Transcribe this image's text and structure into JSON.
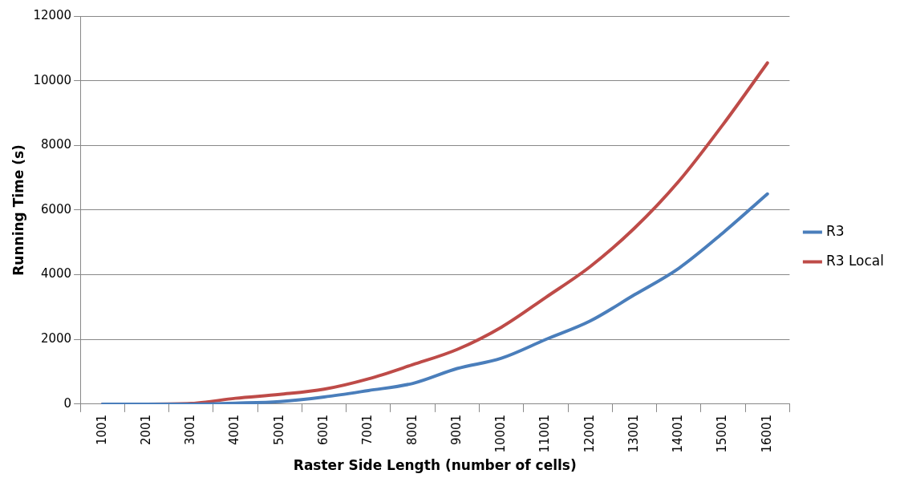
{
  "chart_data": {
    "type": "line",
    "xlabel": "Raster Side Length (number of cells)",
    "ylabel": "Running Time (s)",
    "categories": [
      "1001",
      "2001",
      "3001",
      "4001",
      "5001",
      "6001",
      "7001",
      "8001",
      "9001",
      "10001",
      "11001",
      "12001",
      "13001",
      "14001",
      "15001",
      "16001"
    ],
    "series": [
      {
        "name": "R3",
        "color": "#4a7ebb",
        "values": [
          0,
          0,
          0,
          30,
          80,
          220,
          420,
          640,
          1100,
          1420,
          2000,
          2570,
          3380,
          4200,
          5300,
          6500
        ]
      },
      {
        "name": "R3 Local",
        "color": "#be4b48",
        "values": [
          0,
          0,
          20,
          180,
          300,
          460,
          780,
          1220,
          1690,
          2380,
          3300,
          4250,
          5440,
          6890,
          8650,
          10550
        ]
      }
    ],
    "ylim": [
      0,
      12000
    ],
    "yticks": [
      0,
      2000,
      4000,
      6000,
      8000,
      10000,
      12000
    ],
    "grid": "y",
    "legend": "right",
    "marker": "none",
    "line_style": "solid"
  }
}
